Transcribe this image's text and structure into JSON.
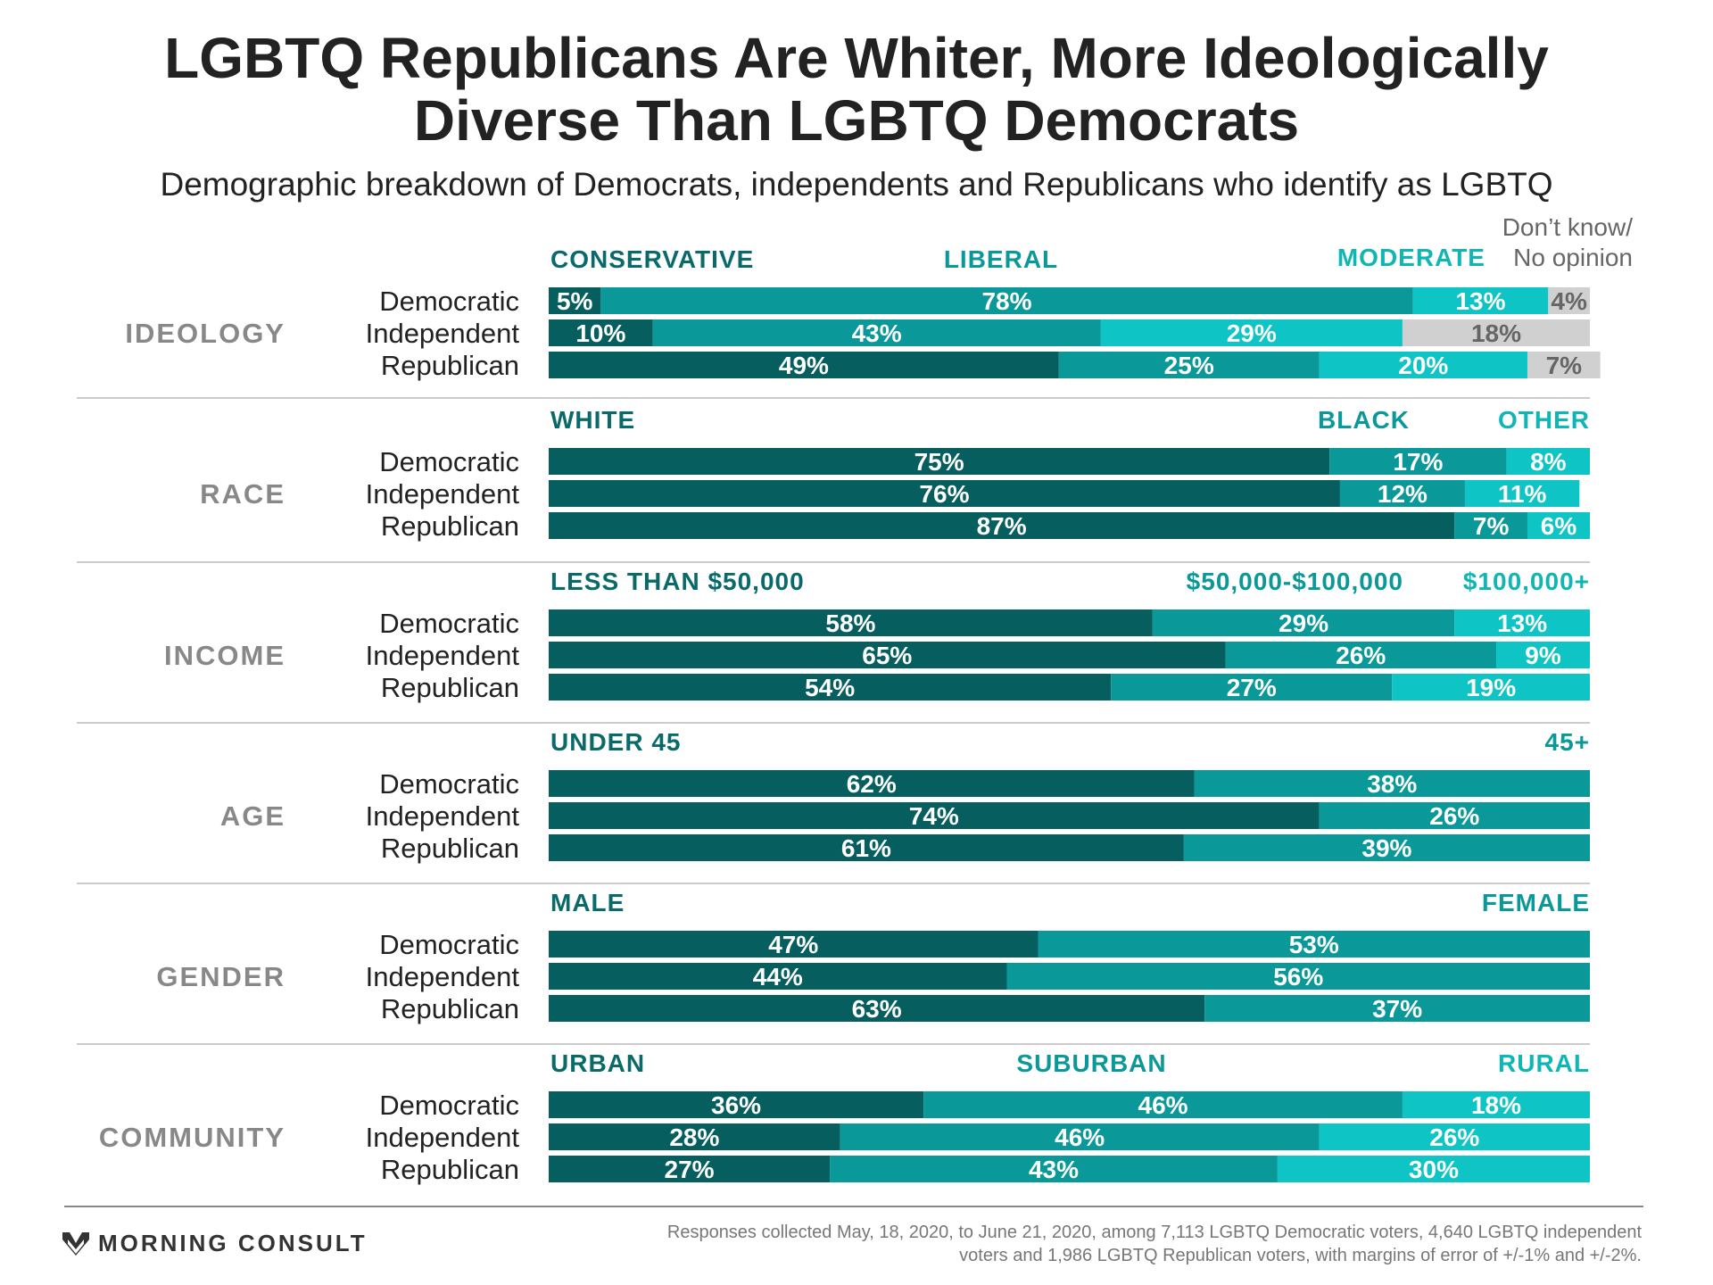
{
  "title_lines": [
    "LGBTQ Republicans Are Whiter, More Ideologically",
    "Diverse Than LGBTQ Democrats"
  ],
  "subtitle": "Demographic breakdown of Democrats, independents and Republicans who identify as LGBTQ",
  "colors": {
    "dark": "#075e5e",
    "mid": "#0b9898",
    "light": "#0ec4c4",
    "gray": "#d0d0d0",
    "cat_dark": "#0a6a6a",
    "cat_mid": "#0b9898",
    "cat_light": "#10b6b6"
  },
  "chart_data": [
    {
      "type": "bar",
      "section": "IDEOLOGY",
      "categories": [
        "Democratic",
        "Independent",
        "Republican"
      ],
      "series": [
        {
          "name": "CONSERVATIVE",
          "values": [
            5,
            10,
            49
          ]
        },
        {
          "name": "LIBERAL",
          "values": [
            78,
            43,
            25
          ]
        },
        {
          "name": "MODERATE",
          "values": [
            13,
            29,
            20
          ]
        },
        {
          "name": "Don’t know/ No opinion",
          "values": [
            4,
            18,
            7
          ]
        }
      ],
      "legend_lines_extra": [
        "Don’t know/",
        "No opinion"
      ]
    },
    {
      "type": "bar",
      "section": "RACE",
      "categories": [
        "Democratic",
        "Independent",
        "Republican"
      ],
      "series": [
        {
          "name": "WHITE",
          "values": [
            75,
            76,
            87
          ]
        },
        {
          "name": "BLACK",
          "values": [
            17,
            12,
            7
          ]
        },
        {
          "name": "OTHER",
          "values": [
            8,
            11,
            6
          ]
        }
      ]
    },
    {
      "type": "bar",
      "section": "INCOME",
      "categories": [
        "Democratic",
        "Independent",
        "Republican"
      ],
      "series": [
        {
          "name": "LESS THAN $50,000",
          "values": [
            58,
            65,
            54
          ]
        },
        {
          "name": "$50,000-$100,000",
          "values": [
            29,
            26,
            27
          ]
        },
        {
          "name": "$100,000+",
          "values": [
            13,
            9,
            19
          ]
        }
      ]
    },
    {
      "type": "bar",
      "section": "AGE",
      "categories": [
        "Democratic",
        "Independent",
        "Republican"
      ],
      "series": [
        {
          "name": "UNDER 45",
          "values": [
            62,
            74,
            61
          ]
        },
        {
          "name": "45+",
          "values": [
            38,
            26,
            39
          ]
        }
      ]
    },
    {
      "type": "bar",
      "section": "GENDER",
      "categories": [
        "Democratic",
        "Independent",
        "Republican"
      ],
      "series": [
        {
          "name": "MALE",
          "values": [
            47,
            44,
            63
          ]
        },
        {
          "name": "FEMALE",
          "values": [
            53,
            56,
            37
          ]
        }
      ]
    },
    {
      "type": "bar",
      "section": "COMMUNITY",
      "categories": [
        "Democratic",
        "Independent",
        "Republican"
      ],
      "series": [
        {
          "name": "URBAN",
          "values": [
            36,
            28,
            27
          ]
        },
        {
          "name": "SUBURBAN",
          "values": [
            46,
            46,
            43
          ]
        },
        {
          "name": "RURAL",
          "values": [
            18,
            26,
            30
          ]
        }
      ]
    }
  ],
  "footer": {
    "logo": "MORNING CONSULT",
    "note": "Responses collected May, 18, 2020, to June 21, 2020, among 7,113 LGBTQ Democratic voters, 4,640 LGBTQ independent voters and 1,986 LGBTQ Republican voters, with margins of error of +/-1% and +/-2%."
  }
}
